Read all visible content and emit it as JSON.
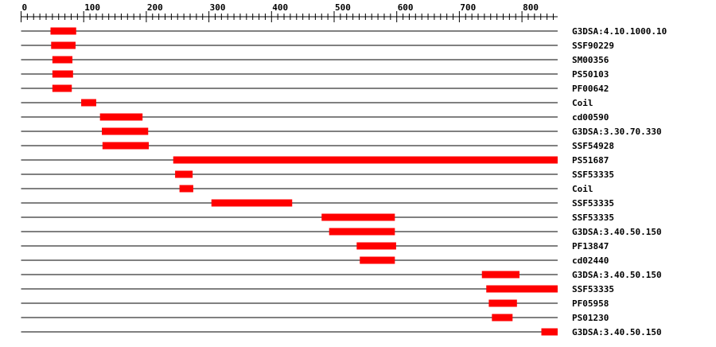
{
  "chart_data": {
    "type": "bar",
    "orientation": "horizontal-ranges",
    "xlim": [
      0,
      857
    ],
    "x_ticks": [
      0,
      100,
      200,
      300,
      400,
      500,
      600,
      700,
      800
    ],
    "minor_tick_step": 10,
    "bar_color": "#ff0000",
    "line_color": "#000000",
    "rows": [
      {
        "label": "G3DSA:4.10.1000.10",
        "start": 47,
        "end": 88
      },
      {
        "label": "SSF90229",
        "start": 48,
        "end": 87
      },
      {
        "label": "SM00356",
        "start": 50,
        "end": 82
      },
      {
        "label": "PS50103",
        "start": 50,
        "end": 83
      },
      {
        "label": "PF00642",
        "start": 50,
        "end": 81
      },
      {
        "label": "Coil",
        "start": 96,
        "end": 120
      },
      {
        "label": "cd00590",
        "start": 126,
        "end": 194
      },
      {
        "label": "G3DSA:3.30.70.330",
        "start": 129,
        "end": 203
      },
      {
        "label": "SSF54928",
        "start": 130,
        "end": 204
      },
      {
        "label": "PS51687",
        "start": 243,
        "end": 857
      },
      {
        "label": "SSF53335",
        "start": 246,
        "end": 274
      },
      {
        "label": "Coil",
        "start": 253,
        "end": 275
      },
      {
        "label": "SSF53335",
        "start": 304,
        "end": 433
      },
      {
        "label": "SSF53335",
        "start": 480,
        "end": 597
      },
      {
        "label": "G3DSA:3.40.50.150",
        "start": 492,
        "end": 597
      },
      {
        "label": "PF13847",
        "start": 536,
        "end": 599
      },
      {
        "label": "cd02440",
        "start": 541,
        "end": 597
      },
      {
        "label": "G3DSA:3.40.50.150",
        "start": 736,
        "end": 796
      },
      {
        "label": "SSF53335",
        "start": 743,
        "end": 857
      },
      {
        "label": "PF05958",
        "start": 747,
        "end": 792
      },
      {
        "label": "PS01230",
        "start": 752,
        "end": 785
      },
      {
        "label": "G3DSA:3.40.50.150",
        "start": 831,
        "end": 857
      }
    ]
  }
}
